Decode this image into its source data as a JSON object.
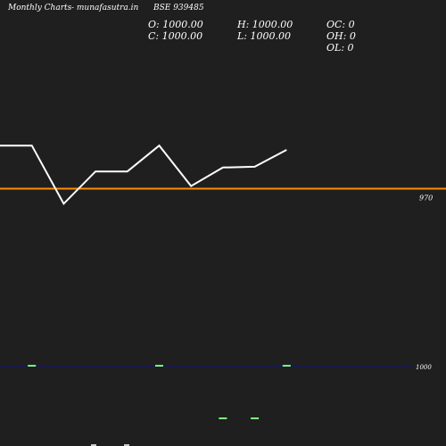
{
  "header": {
    "title": "Monthly Charts",
    "source": "- munafasutra.in",
    "symbol": "BSE 939485"
  },
  "ohlc": {
    "open": "O: 1000.00",
    "close": "C: 1000.00",
    "high": "H: 1000.00",
    "low": "L: 1000.00",
    "oc": "OC: 0",
    "oh": "OH: 0",
    "ol": "OL: 0"
  },
  "colors": {
    "background": "#1f1f1f",
    "price_line": "#ffffff",
    "reference_line": "#ff8c00",
    "volume_axis": "#1a1a4a",
    "volume_bar": "#7cff7c"
  },
  "chart_data": [
    {
      "type": "line",
      "series": [
        {
          "values": [
            980,
            980,
            966.5,
            974,
            974,
            980,
            970.6,
            974.9,
            975.1,
            979
          ]
        }
      ],
      "reference_line": {
        "value": 970,
        "label": "970"
      },
      "ylim": [
        932,
        1013.8
      ],
      "grid": false
    },
    {
      "type": "bar",
      "axis_label": "1000",
      "bars": [
        {
          "x": 1,
          "row": "upper"
        },
        {
          "x": 5,
          "row": "upper"
        },
        {
          "x": 7,
          "row": "lower"
        },
        {
          "x": 8,
          "row": "lower"
        },
        {
          "x": 9,
          "row": "upper"
        }
      ]
    }
  ]
}
